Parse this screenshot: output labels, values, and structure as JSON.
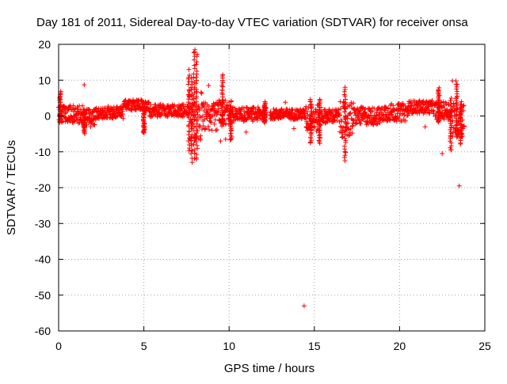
{
  "chart_data": {
    "type": "scatter",
    "title": "Day 181 of 2011, Sidereal Day-to-day VTEC variation (SDTVAR) for receiver onsa",
    "xlabel": "GPS time / hours",
    "ylabel": "SDTVAR / TECUs",
    "xlim": [
      0,
      25
    ],
    "ylim": [
      -60,
      20
    ],
    "xticks": [
      0,
      5,
      10,
      15,
      20,
      25
    ],
    "yticks": [
      20,
      10,
      0,
      -10,
      -20,
      -30,
      -40,
      -50,
      -60
    ],
    "grid": true,
    "marker": "+",
    "color": "#ff0000",
    "series": [
      {
        "name": "SDTVAR",
        "segments": [
          {
            "x_start": 0.0,
            "x_end": 1.4,
            "center": 0.5,
            "halfwidth": 2.5
          },
          {
            "x_start": 1.4,
            "x_end": 2.2,
            "center": -0.5,
            "halfwidth": 2.5
          },
          {
            "x_start": 2.2,
            "x_end": 3.8,
            "center": 1.0,
            "halfwidth": 1.8
          },
          {
            "x_start": 3.8,
            "x_end": 5.3,
            "center": 3.0,
            "halfwidth": 1.5
          },
          {
            "x_start": 5.3,
            "x_end": 7.6,
            "center": 1.5,
            "halfwidth": 1.8
          },
          {
            "x_start": 7.6,
            "x_end": 8.4,
            "center": 0.0,
            "halfwidth": 7.0
          },
          {
            "x_start": 8.4,
            "x_end": 9.3,
            "center": 0.0,
            "halfwidth": 4.0
          },
          {
            "x_start": 9.3,
            "x_end": 10.3,
            "center": 1.0,
            "halfwidth": 3.5
          },
          {
            "x_start": 10.3,
            "x_end": 12.2,
            "center": 0.5,
            "halfwidth": 2.0
          },
          {
            "x_start": 12.4,
            "x_end": 14.5,
            "center": 0.5,
            "halfwidth": 1.5
          },
          {
            "x_start": 14.5,
            "x_end": 15.4,
            "center": -0.5,
            "halfwidth": 4.0
          },
          {
            "x_start": 15.4,
            "x_end": 16.5,
            "center": 0.0,
            "halfwidth": 2.0
          },
          {
            "x_start": 16.5,
            "x_end": 17.3,
            "center": -1.0,
            "halfwidth": 5.0
          },
          {
            "x_start": 17.3,
            "x_end": 19.0,
            "center": 0.0,
            "halfwidth": 2.5
          },
          {
            "x_start": 19.0,
            "x_end": 20.5,
            "center": 1.0,
            "halfwidth": 2.5
          },
          {
            "x_start": 20.5,
            "x_end": 22.0,
            "center": 2.5,
            "halfwidth": 1.8
          },
          {
            "x_start": 22.0,
            "x_end": 23.0,
            "center": 1.5,
            "halfwidth": 2.5
          },
          {
            "x_start": 23.0,
            "x_end": 23.8,
            "center": -1.0,
            "halfwidth": 5.0
          }
        ],
        "spikes": [
          {
            "x": 0.1,
            "low": -2,
            "high": 7
          },
          {
            "x": 1.5,
            "low": -5,
            "high": 2
          },
          {
            "x": 5.0,
            "low": -5,
            "high": 2
          },
          {
            "x": 7.65,
            "low": -10,
            "high": 13
          },
          {
            "x": 7.8,
            "low": -13,
            "high": 11
          },
          {
            "x": 7.95,
            "low": -12,
            "high": 19
          },
          {
            "x": 8.1,
            "low": -13,
            "high": 18
          },
          {
            "x": 9.6,
            "low": -3,
            "high": 12
          },
          {
            "x": 10.1,
            "low": -7,
            "high": 3
          },
          {
            "x": 12.1,
            "low": -2,
            "high": 4
          },
          {
            "x": 14.8,
            "low": -8,
            "high": 5
          },
          {
            "x": 15.3,
            "low": -8,
            "high": 5
          },
          {
            "x": 16.8,
            "low": -13,
            "high": 8
          },
          {
            "x": 22.3,
            "low": -2,
            "high": 8
          },
          {
            "x": 23.0,
            "low": -10,
            "high": 5
          },
          {
            "x": 23.35,
            "low": -6,
            "high": 10
          },
          {
            "x": 23.6,
            "low": -8,
            "high": 4
          }
        ],
        "outliers": [
          {
            "x": 1.5,
            "y": 8.7
          },
          {
            "x": 8.0,
            "y": 18.5
          },
          {
            "x": 8.8,
            "y": 8.5
          },
          {
            "x": 9.5,
            "y": -7.0
          },
          {
            "x": 9.8,
            "y": -6.5
          },
          {
            "x": 11.0,
            "y": -4.5
          },
          {
            "x": 13.3,
            "y": 3.8
          },
          {
            "x": 13.8,
            "y": -3.5
          },
          {
            "x": 14.4,
            "y": -53.0
          },
          {
            "x": 16.8,
            "y": 8.0
          },
          {
            "x": 22.5,
            "y": -10.5
          },
          {
            "x": 23.1,
            "y": 9.8
          },
          {
            "x": 23.5,
            "y": -19.5
          },
          {
            "x": 21.5,
            "y": -3.0
          }
        ]
      }
    ]
  }
}
